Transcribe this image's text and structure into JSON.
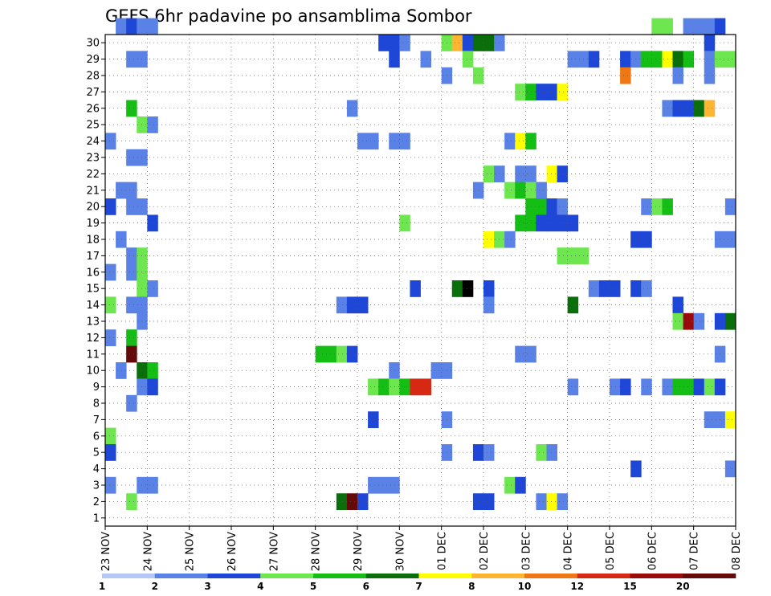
{
  "chart_data": {
    "type": "heatmap",
    "title": "GEFS 6hr padavine po ansamblima Sombor",
    "x_tick_labels": [
      "23 NOV",
      "24 NOV",
      "25 NOV",
      "26 NOV",
      "27 NOV",
      "28 NOV",
      "29 NOV",
      "30 NOV",
      "01 DEC",
      "02 DEC",
      "03 DEC",
      "04 DEC",
      "05 DEC",
      "06 DEC",
      "07 DEC",
      "08 DEC"
    ],
    "y_tick_labels": [
      "1",
      "2",
      "3",
      "4",
      "5",
      "6",
      "7",
      "8",
      "9",
      "10",
      "11",
      "12",
      "13",
      "14",
      "15",
      "16",
      "17",
      "18",
      "19",
      "20",
      "21",
      "22",
      "23",
      "24",
      "25",
      "26",
      "27",
      "28",
      "29",
      "30"
    ],
    "xlim": [
      0,
      60
    ],
    "ylim": [
      0,
      30
    ],
    "grid": true,
    "colorbar": {
      "labels": [
        "1",
        "2",
        "3",
        "4",
        "5",
        "6",
        "7",
        "8",
        "10",
        "12",
        "15",
        "20"
      ],
      "colors": [
        "#b4c8f5",
        "#5a82e6",
        "#1e46d7",
        "#6ee650",
        "#14be14",
        "#0a6e0a",
        "#ffff00",
        "#ffb432",
        "#f07814",
        "#d72814",
        "#9b0a0a",
        "#640a0a"
      ]
    },
    "cells": [
      [
        30,
        1,
        1
      ],
      [
        30,
        2,
        2
      ],
      [
        30,
        3,
        1
      ],
      [
        30,
        4,
        1
      ],
      [
        30,
        52,
        3
      ],
      [
        30,
        53,
        3
      ],
      [
        30,
        55,
        1
      ],
      [
        30,
        56,
        1
      ],
      [
        30,
        57,
        1
      ],
      [
        30,
        58,
        2
      ],
      [
        29,
        26,
        2
      ],
      [
        29,
        27,
        2
      ],
      [
        29,
        28,
        1
      ],
      [
        29,
        32,
        3
      ],
      [
        29,
        33,
        7
      ],
      [
        29,
        34,
        2
      ],
      [
        29,
        35,
        5
      ],
      [
        29,
        36,
        5
      ],
      [
        29,
        37,
        1
      ],
      [
        29,
        57,
        2
      ],
      [
        28,
        2,
        1
      ],
      [
        28,
        3,
        1
      ],
      [
        28,
        27,
        2
      ],
      [
        28,
        30,
        1
      ],
      [
        28,
        34,
        3
      ],
      [
        28,
        44,
        1
      ],
      [
        28,
        45,
        1
      ],
      [
        28,
        46,
        2
      ],
      [
        28,
        49,
        2
      ],
      [
        28,
        50,
        1
      ],
      [
        28,
        51,
        4
      ],
      [
        28,
        52,
        4
      ],
      [
        28,
        53,
        6
      ],
      [
        28,
        54,
        5
      ],
      [
        28,
        55,
        4
      ],
      [
        28,
        57,
        1
      ],
      [
        28,
        58,
        3
      ],
      [
        28,
        59,
        3
      ],
      [
        27,
        32,
        1
      ],
      [
        27,
        35,
        3
      ],
      [
        27,
        49,
        8
      ],
      [
        27,
        54,
        1
      ],
      [
        27,
        57,
        1
      ],
      [
        26,
        39,
        3
      ],
      [
        26,
        40,
        4
      ],
      [
        26,
        41,
        2
      ],
      [
        26,
        42,
        2
      ],
      [
        26,
        43,
        6
      ],
      [
        25,
        2,
        4
      ],
      [
        25,
        23,
        1
      ],
      [
        25,
        53,
        1
      ],
      [
        25,
        54,
        2
      ],
      [
        25,
        55,
        2
      ],
      [
        25,
        56,
        5
      ],
      [
        25,
        57,
        7
      ],
      [
        24,
        3,
        3
      ],
      [
        24,
        4,
        1
      ],
      [
        23,
        0,
        1
      ],
      [
        23,
        24,
        1
      ],
      [
        23,
        25,
        1
      ],
      [
        23,
        27,
        1
      ],
      [
        23,
        28,
        1
      ],
      [
        23,
        38,
        1
      ],
      [
        23,
        39,
        6
      ],
      [
        23,
        40,
        4
      ],
      [
        22,
        2,
        1
      ],
      [
        22,
        3,
        1
      ],
      [
        21,
        36,
        3
      ],
      [
        21,
        37,
        1
      ],
      [
        21,
        39,
        1
      ],
      [
        21,
        40,
        1
      ],
      [
        21,
        42,
        6
      ],
      [
        21,
        43,
        2
      ],
      [
        20,
        1,
        1
      ],
      [
        20,
        2,
        1
      ],
      [
        20,
        35,
        1
      ],
      [
        20,
        38,
        3
      ],
      [
        20,
        39,
        4
      ],
      [
        20,
        40,
        3
      ],
      [
        20,
        41,
        1
      ],
      [
        19,
        0,
        2
      ],
      [
        19,
        2,
        1
      ],
      [
        19,
        3,
        1
      ],
      [
        19,
        40,
        4
      ],
      [
        19,
        41,
        4
      ],
      [
        19,
        42,
        2
      ],
      [
        19,
        43,
        1
      ],
      [
        19,
        51,
        1
      ],
      [
        19,
        52,
        3
      ],
      [
        19,
        53,
        4
      ],
      [
        19,
        59,
        1
      ],
      [
        18,
        4,
        2
      ],
      [
        18,
        28,
        3
      ],
      [
        18,
        39,
        4
      ],
      [
        18,
        40,
        4
      ],
      [
        18,
        41,
        2
      ],
      [
        18,
        42,
        2
      ],
      [
        18,
        43,
        2
      ],
      [
        18,
        44,
        2
      ],
      [
        17,
        1,
        1
      ],
      [
        17,
        36,
        6
      ],
      [
        17,
        37,
        3
      ],
      [
        17,
        38,
        1
      ],
      [
        17,
        50,
        2
      ],
      [
        17,
        51,
        2
      ],
      [
        17,
        58,
        1
      ],
      [
        17,
        59,
        1
      ],
      [
        16,
        2,
        1
      ],
      [
        16,
        3,
        3
      ],
      [
        16,
        43,
        3
      ],
      [
        16,
        44,
        3
      ],
      [
        16,
        45,
        3
      ],
      [
        15,
        0,
        1
      ],
      [
        15,
        2,
        1
      ],
      [
        15,
        3,
        3
      ],
      [
        14,
        3,
        3
      ],
      [
        14,
        4,
        1
      ],
      [
        14,
        29,
        2
      ],
      [
        14,
        33,
        5
      ],
      [
        14,
        34,
        13
      ],
      [
        14,
        36,
        2
      ],
      [
        14,
        46,
        1
      ],
      [
        14,
        47,
        2
      ],
      [
        14,
        48,
        2
      ],
      [
        14,
        50,
        2
      ],
      [
        14,
        51,
        1
      ],
      [
        13,
        0,
        3
      ],
      [
        13,
        2,
        1
      ],
      [
        13,
        3,
        1
      ],
      [
        13,
        22,
        1
      ],
      [
        13,
        23,
        2
      ],
      [
        13,
        24,
        2
      ],
      [
        13,
        36,
        1
      ],
      [
        13,
        44,
        5
      ],
      [
        13,
        54,
        2
      ],
      [
        12,
        3,
        1
      ],
      [
        12,
        54,
        3
      ],
      [
        12,
        55,
        10
      ],
      [
        12,
        56,
        1
      ],
      [
        12,
        58,
        2
      ],
      [
        12,
        59,
        5
      ],
      [
        11,
        0,
        1
      ],
      [
        11,
        2,
        4
      ],
      [
        10,
        2,
        11
      ],
      [
        10,
        20,
        4
      ],
      [
        10,
        21,
        4
      ],
      [
        10,
        22,
        3
      ],
      [
        10,
        23,
        2
      ],
      [
        10,
        39,
        1
      ],
      [
        10,
        40,
        1
      ],
      [
        10,
        58,
        1
      ],
      [
        9,
        1,
        1
      ],
      [
        9,
        3,
        5
      ],
      [
        9,
        4,
        4
      ],
      [
        9,
        27,
        1
      ],
      [
        9,
        31,
        1
      ],
      [
        9,
        32,
        1
      ],
      [
        8,
        3,
        1
      ],
      [
        8,
        4,
        2
      ],
      [
        8,
        25,
        3
      ],
      [
        8,
        26,
        4
      ],
      [
        8,
        27,
        3
      ],
      [
        8,
        28,
        4
      ],
      [
        8,
        29,
        9
      ],
      [
        8,
        30,
        9
      ],
      [
        8,
        44,
        1
      ],
      [
        8,
        48,
        1
      ],
      [
        8,
        49,
        2
      ],
      [
        8,
        51,
        1
      ],
      [
        8,
        53,
        1
      ],
      [
        8,
        54,
        4
      ],
      [
        8,
        55,
        4
      ],
      [
        8,
        56,
        2
      ],
      [
        8,
        57,
        3
      ],
      [
        8,
        58,
        2
      ],
      [
        7,
        2,
        1
      ],
      [
        6,
        25,
        2
      ],
      [
        6,
        32,
        1
      ],
      [
        6,
        57,
        1
      ],
      [
        6,
        58,
        1
      ],
      [
        6,
        59,
        6
      ],
      [
        5,
        0,
        3
      ],
      [
        4,
        0,
        2
      ],
      [
        4,
        32,
        1
      ],
      [
        4,
        35,
        2
      ],
      [
        4,
        36,
        1
      ],
      [
        4,
        41,
        3
      ],
      [
        4,
        42,
        1
      ],
      [
        3,
        50,
        2
      ],
      [
        3,
        59,
        1
      ],
      [
        2,
        0,
        1
      ],
      [
        2,
        3,
        1
      ],
      [
        2,
        4,
        1
      ],
      [
        2,
        25,
        1
      ],
      [
        2,
        26,
        1
      ],
      [
        2,
        27,
        1
      ],
      [
        2,
        38,
        3
      ],
      [
        2,
        39,
        2
      ],
      [
        1,
        2,
        3
      ],
      [
        1,
        22,
        5
      ],
      [
        1,
        23,
        11
      ],
      [
        1,
        24,
        2
      ],
      [
        1,
        35,
        2
      ],
      [
        1,
        36,
        2
      ],
      [
        1,
        41,
        1
      ],
      [
        1,
        42,
        6
      ],
      [
        1,
        43,
        1
      ]
    ]
  }
}
